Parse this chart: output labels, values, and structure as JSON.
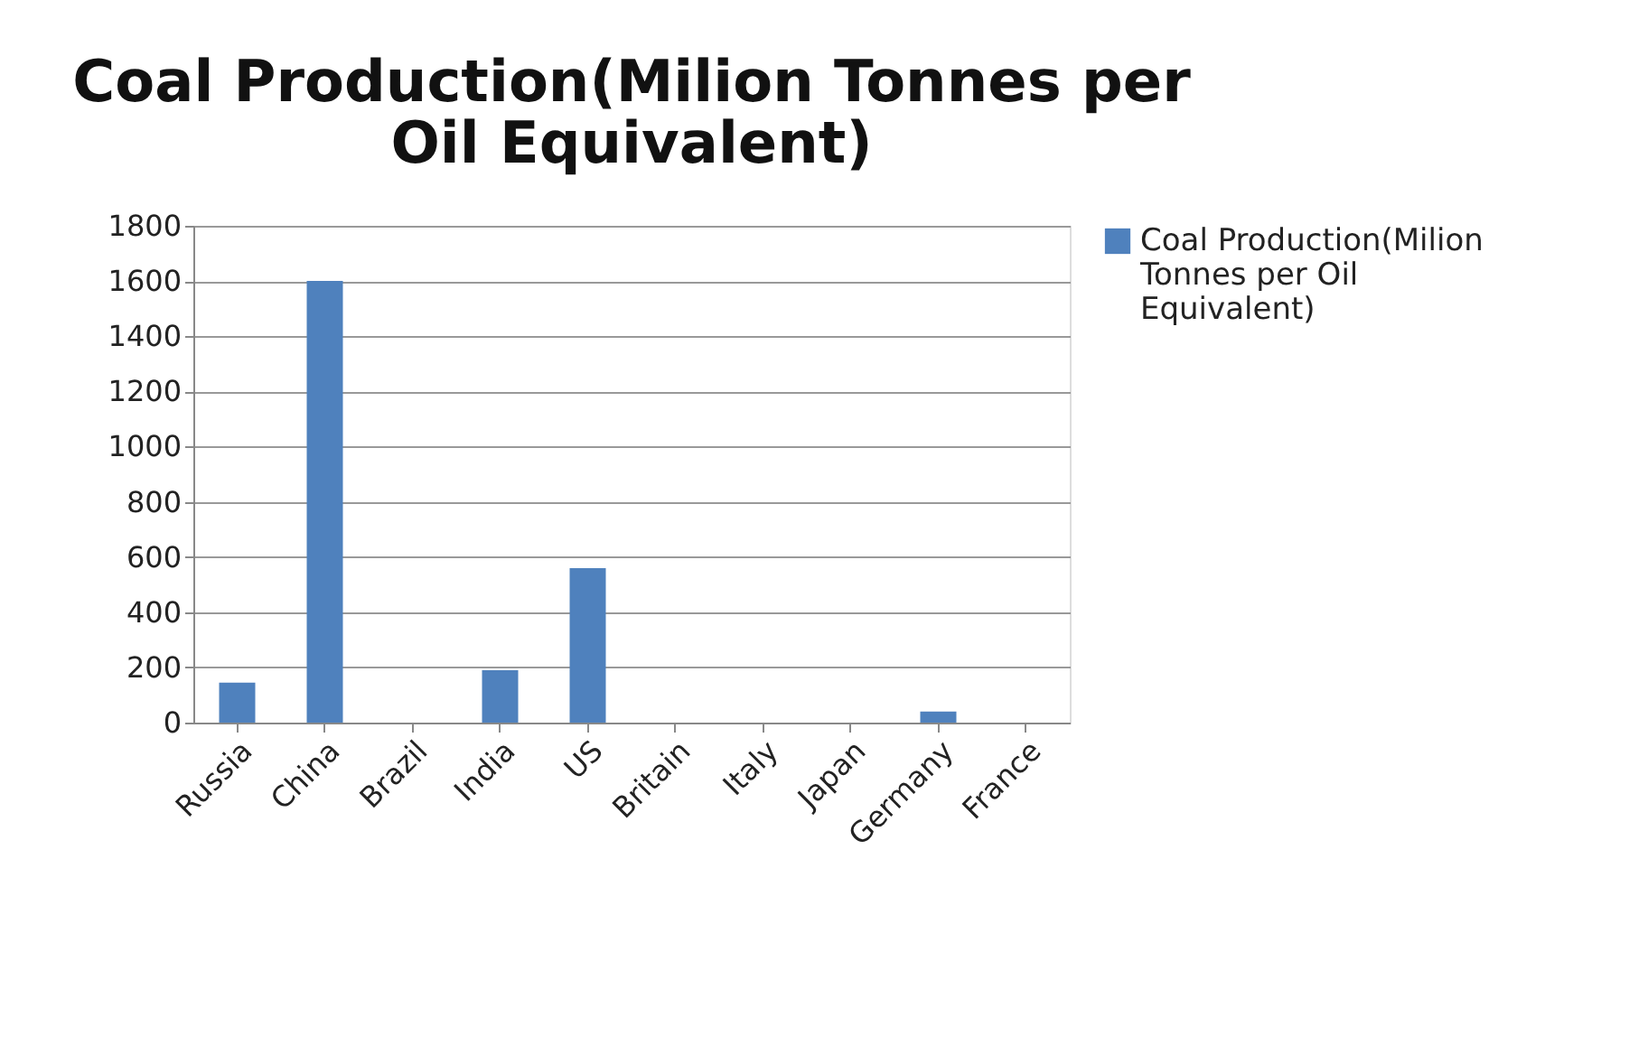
{
  "chart_data": {
    "type": "bar",
    "title": "Coal Production(Milion Tonnes per Oil Equivalent)",
    "categories": [
      "Russia",
      "China",
      "Brazil",
      "India",
      "US",
      "Britain",
      "Italy",
      "Japan",
      "Germany",
      "France"
    ],
    "series": [
      {
        "name": "Coal Production(Milion Tonnes per Oil Equivalent)",
        "color": "#4f81bd",
        "values": [
          145,
          1600,
          0,
          190,
          560,
          0,
          0,
          0,
          40,
          0
        ]
      }
    ],
    "ylim": [
      0,
      1800
    ],
    "yticks": [
      0,
      200,
      400,
      600,
      800,
      1000,
      1200,
      1400,
      1600,
      1800
    ],
    "grid": "y",
    "legend": "right"
  }
}
